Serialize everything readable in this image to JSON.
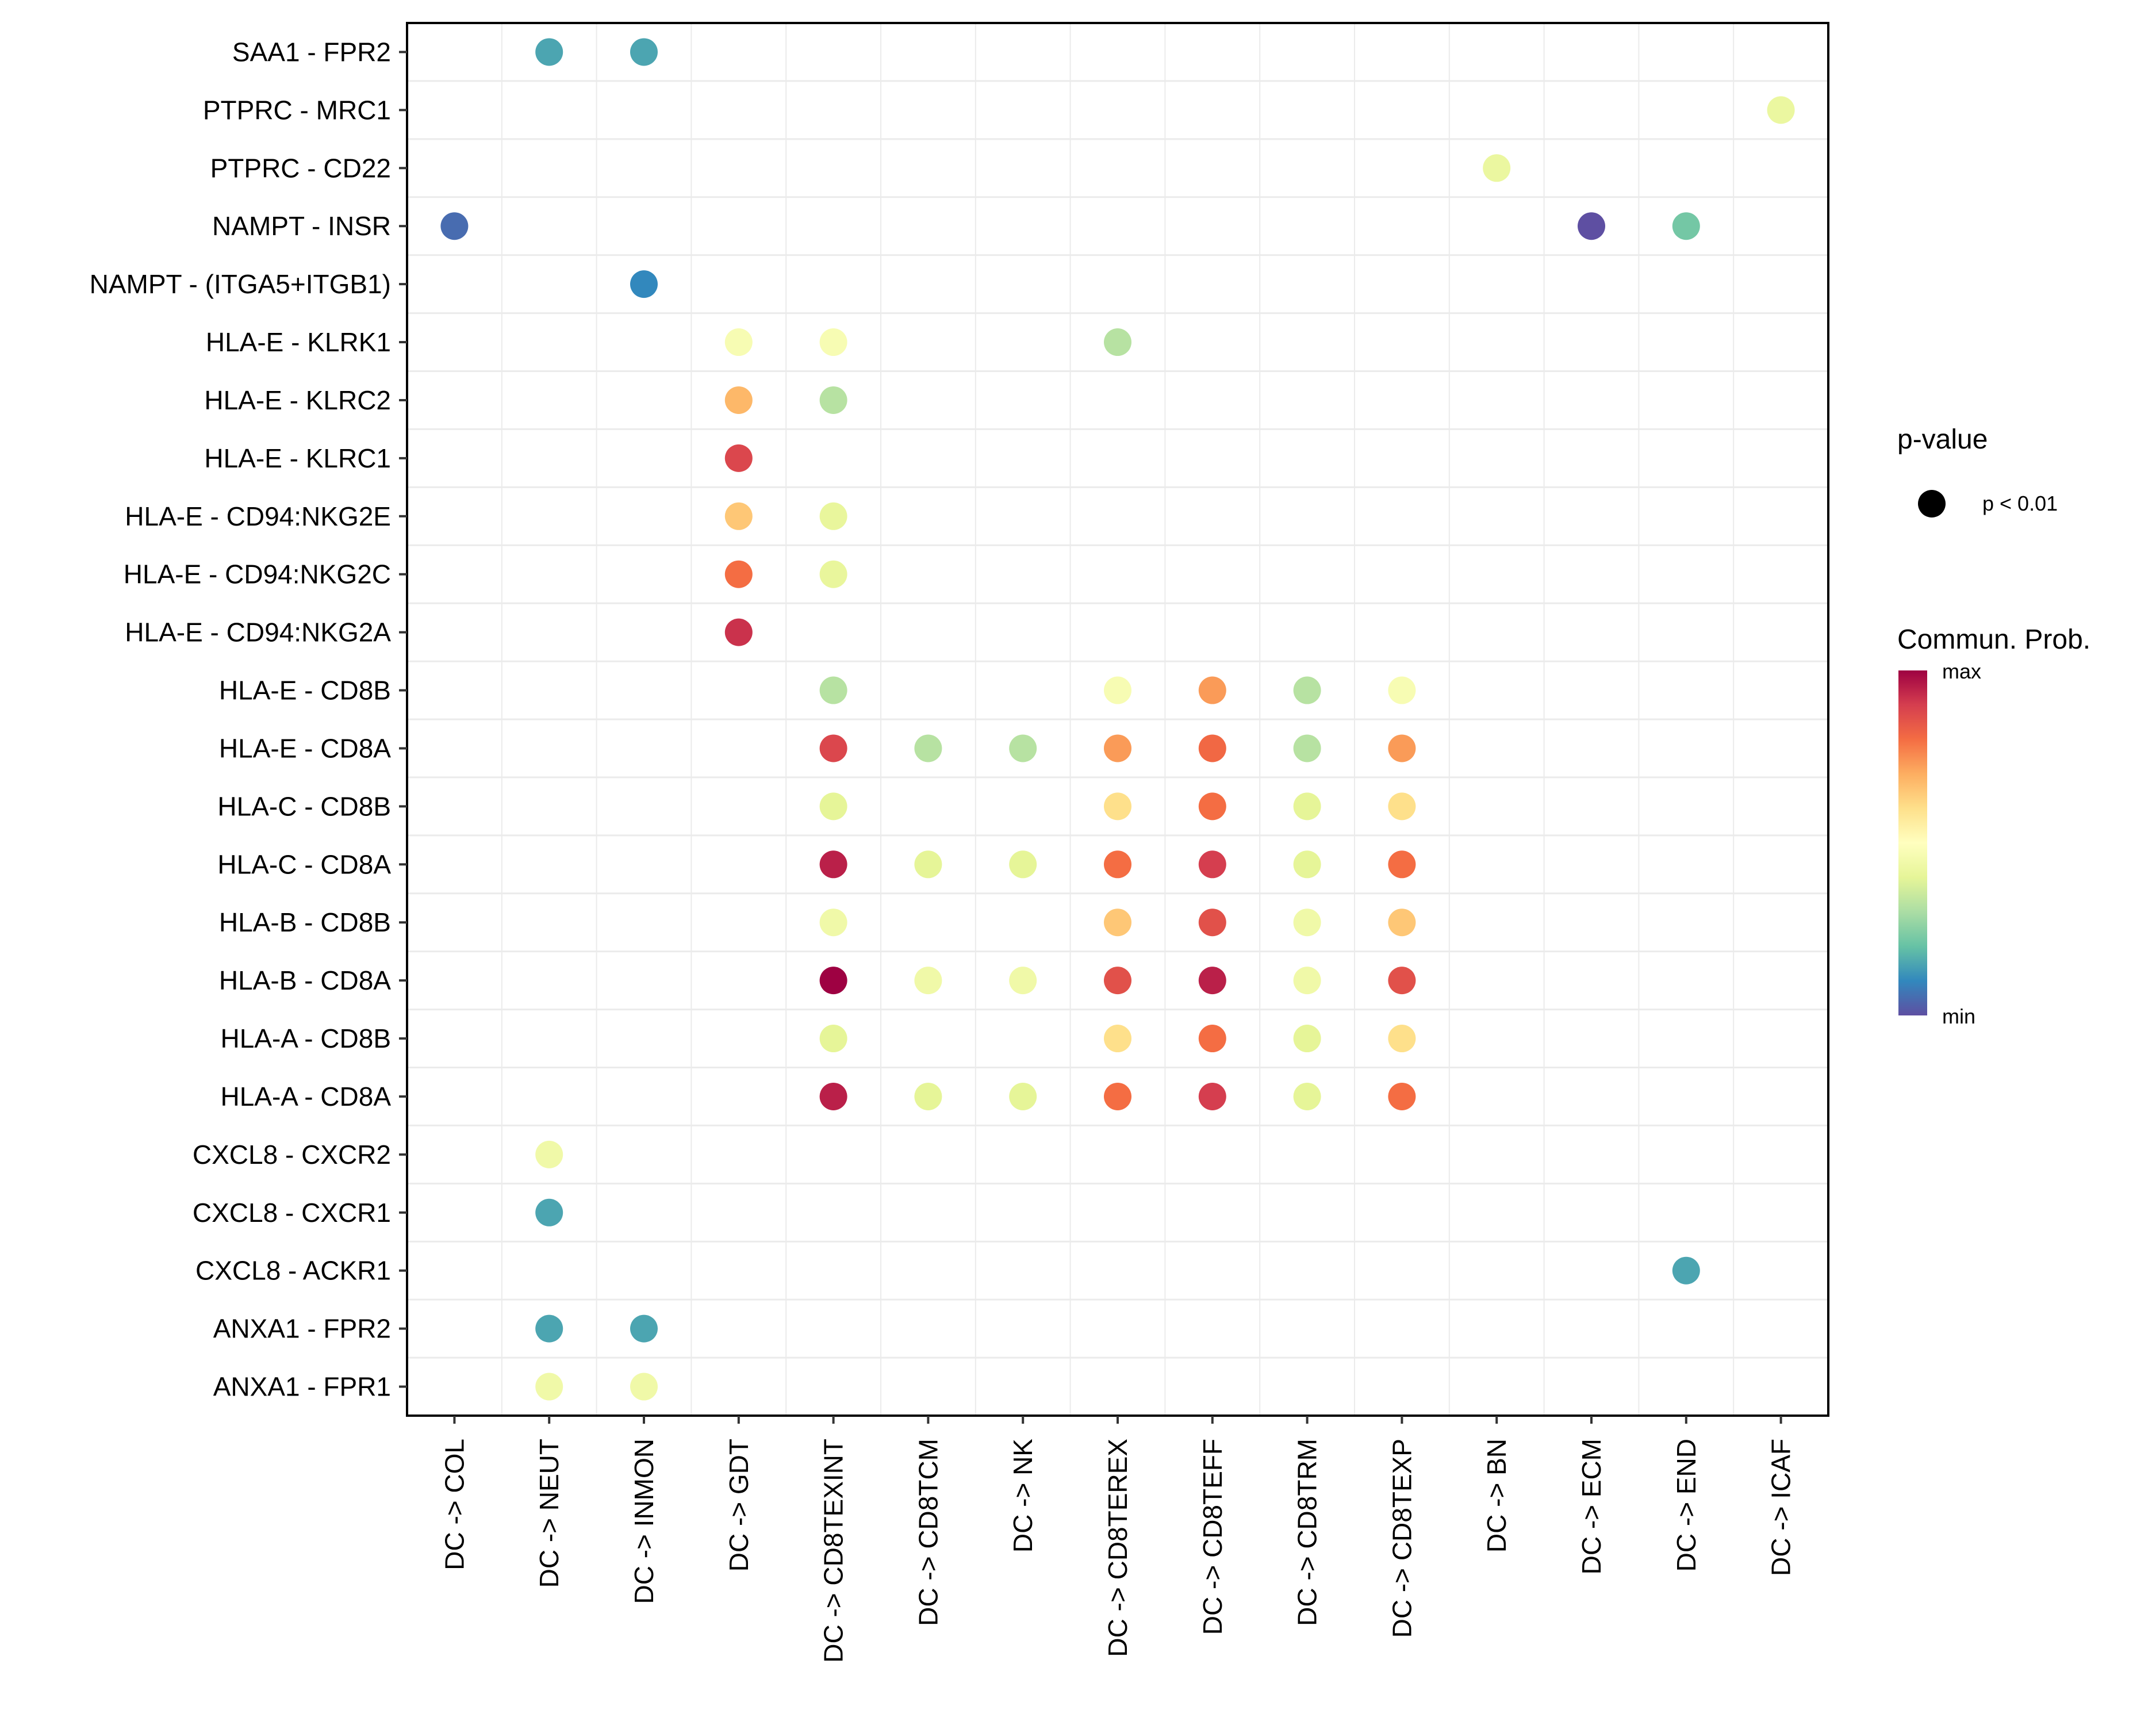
{
  "chart_data": {
    "type": "scatter",
    "subtype": "dot-plot",
    "title": "",
    "xlabel": "",
    "ylabel": "",
    "grid": true,
    "legend_placement": "right",
    "x_categories": [
      "DC -> COL",
      "DC -> NEUT",
      "DC -> INMON",
      "DC -> GDT",
      "DC -> CD8TEXINT",
      "DC -> CD8TCM",
      "DC -> NK",
      "DC -> CD8TEREX",
      "DC -> CD8TEFF",
      "DC -> CD8TRM",
      "DC -> CD8TEXP",
      "DC -> BN",
      "DC -> ECM",
      "DC -> END",
      "DC -> ICAF"
    ],
    "y_categories_top_to_bottom": [
      "SAA1 - FPR2",
      "PTPRC - MRC1",
      "PTPRC - CD22",
      "NAMPT - INSR",
      "NAMPT - (ITGA5+ITGB1)",
      "HLA-E - KLRK1",
      "HLA-E - KLRC2",
      "HLA-E - KLRC1",
      "HLA-E - CD94:NKG2E",
      "HLA-E - CD94:NKG2C",
      "HLA-E - CD94:NKG2A",
      "HLA-E - CD8B",
      "HLA-E - CD8A",
      "HLA-C - CD8B",
      "HLA-C - CD8A",
      "HLA-B - CD8B",
      "HLA-B - CD8A",
      "HLA-A - CD8B",
      "HLA-A - CD8A",
      "CXCL8 - CXCR2",
      "CXCL8 - CXCR1",
      "CXCL8 - ACKR1",
      "ANXA1 - FPR2",
      "ANXA1 - FPR1"
    ],
    "value_note": "commun_prob is relative position on the color scale (0 = min, 1 = max), estimated from dot color",
    "points": [
      {
        "y": "SAA1 - FPR2",
        "x": "DC -> NEUT",
        "commun_prob": 0.15
      },
      {
        "y": "SAA1 - FPR2",
        "x": "DC -> INMON",
        "commun_prob": 0.15
      },
      {
        "y": "PTPRC - MRC1",
        "x": "DC -> ICAF",
        "commun_prob": 0.42
      },
      {
        "y": "PTPRC - CD22",
        "x": "DC -> BN",
        "commun_prob": 0.42
      },
      {
        "y": "NAMPT - INSR",
        "x": "DC -> COL",
        "commun_prob": 0.05
      },
      {
        "y": "NAMPT - INSR",
        "x": "DC -> ECM",
        "commun_prob": 0.0
      },
      {
        "y": "NAMPT - INSR",
        "x": "DC -> END",
        "commun_prob": 0.22
      },
      {
        "y": "NAMPT - (ITGA5+ITGB1)",
        "x": "DC -> INMON",
        "commun_prob": 0.1
      },
      {
        "y": "HLA-E - KLRK1",
        "x": "DC -> GDT",
        "commun_prob": 0.47
      },
      {
        "y": "HLA-E - KLRK1",
        "x": "DC -> CD8TEXINT",
        "commun_prob": 0.47
      },
      {
        "y": "HLA-E - KLRK1",
        "x": "DC -> CD8TEREX",
        "commun_prob": 0.32
      },
      {
        "y": "HLA-E - KLRC2",
        "x": "DC -> GDT",
        "commun_prob": 0.68
      },
      {
        "y": "HLA-E - KLRC2",
        "x": "DC -> CD8TEXINT",
        "commun_prob": 0.32
      },
      {
        "y": "HLA-E - KLRC1",
        "x": "DC -> GDT",
        "commun_prob": 0.88
      },
      {
        "y": "HLA-E - CD94:NKG2E",
        "x": "DC -> GDT",
        "commun_prob": 0.65
      },
      {
        "y": "HLA-E - CD94:NKG2E",
        "x": "DC -> CD8TEXINT",
        "commun_prob": 0.41
      },
      {
        "y": "HLA-E - CD94:NKG2C",
        "x": "DC -> GDT",
        "commun_prob": 0.8
      },
      {
        "y": "HLA-E - CD94:NKG2C",
        "x": "DC -> CD8TEXINT",
        "commun_prob": 0.41
      },
      {
        "y": "HLA-E - CD94:NKG2A",
        "x": "DC -> GDT",
        "commun_prob": 0.92
      },
      {
        "y": "HLA-E - CD8B",
        "x": "DC -> CD8TEXINT",
        "commun_prob": 0.32
      },
      {
        "y": "HLA-E - CD8B",
        "x": "DC -> CD8TEREX",
        "commun_prob": 0.47
      },
      {
        "y": "HLA-E - CD8B",
        "x": "DC -> CD8TEFF",
        "commun_prob": 0.73
      },
      {
        "y": "HLA-E - CD8B",
        "x": "DC -> CD8TRM",
        "commun_prob": 0.32
      },
      {
        "y": "HLA-E - CD8B",
        "x": "DC -> CD8TEXP",
        "commun_prob": 0.47
      },
      {
        "y": "HLA-E - CD8A",
        "x": "DC -> CD8TEXINT",
        "commun_prob": 0.88
      },
      {
        "y": "HLA-E - CD8A",
        "x": "DC -> CD8TCM",
        "commun_prob": 0.32
      },
      {
        "y": "HLA-E - CD8A",
        "x": "DC -> NK",
        "commun_prob": 0.32
      },
      {
        "y": "HLA-E - CD8A",
        "x": "DC -> CD8TEREX",
        "commun_prob": 0.73
      },
      {
        "y": "HLA-E - CD8A",
        "x": "DC -> CD8TEFF",
        "commun_prob": 0.81
      },
      {
        "y": "HLA-E - CD8A",
        "x": "DC -> CD8TRM",
        "commun_prob": 0.32
      },
      {
        "y": "HLA-E - CD8A",
        "x": "DC -> CD8TEXP",
        "commun_prob": 0.73
      },
      {
        "y": "HLA-C - CD8B",
        "x": "DC -> CD8TEXINT",
        "commun_prob": 0.4
      },
      {
        "y": "HLA-C - CD8B",
        "x": "DC -> CD8TEREX",
        "commun_prob": 0.6
      },
      {
        "y": "HLA-C - CD8B",
        "x": "DC -> CD8TEFF",
        "commun_prob": 0.8
      },
      {
        "y": "HLA-C - CD8B",
        "x": "DC -> CD8TRM",
        "commun_prob": 0.4
      },
      {
        "y": "HLA-C - CD8B",
        "x": "DC -> CD8TEXP",
        "commun_prob": 0.6
      },
      {
        "y": "HLA-C - CD8A",
        "x": "DC -> CD8TEXINT",
        "commun_prob": 0.95
      },
      {
        "y": "HLA-C - CD8A",
        "x": "DC -> CD8TCM",
        "commun_prob": 0.4
      },
      {
        "y": "HLA-C - CD8A",
        "x": "DC -> NK",
        "commun_prob": 0.4
      },
      {
        "y": "HLA-C - CD8A",
        "x": "DC -> CD8TEREX",
        "commun_prob": 0.8
      },
      {
        "y": "HLA-C - CD8A",
        "x": "DC -> CD8TEFF",
        "commun_prob": 0.9
      },
      {
        "y": "HLA-C - CD8A",
        "x": "DC -> CD8TRM",
        "commun_prob": 0.4
      },
      {
        "y": "HLA-C - CD8A",
        "x": "DC -> CD8TEXP",
        "commun_prob": 0.8
      },
      {
        "y": "HLA-B - CD8B",
        "x": "DC -> CD8TEXINT",
        "commun_prob": 0.44
      },
      {
        "y": "HLA-B - CD8B",
        "x": "DC -> CD8TEREX",
        "commun_prob": 0.65
      },
      {
        "y": "HLA-B - CD8B",
        "x": "DC -> CD8TEFF",
        "commun_prob": 0.86
      },
      {
        "y": "HLA-B - CD8B",
        "x": "DC -> CD8TRM",
        "commun_prob": 0.44
      },
      {
        "y": "HLA-B - CD8B",
        "x": "DC -> CD8TEXP",
        "commun_prob": 0.65
      },
      {
        "y": "HLA-B - CD8A",
        "x": "DC -> CD8TEXINT",
        "commun_prob": 1.0
      },
      {
        "y": "HLA-B - CD8A",
        "x": "DC -> CD8TCM",
        "commun_prob": 0.44
      },
      {
        "y": "HLA-B - CD8A",
        "x": "DC -> NK",
        "commun_prob": 0.44
      },
      {
        "y": "HLA-B - CD8A",
        "x": "DC -> CD8TEREX",
        "commun_prob": 0.86
      },
      {
        "y": "HLA-B - CD8A",
        "x": "DC -> CD8TEFF",
        "commun_prob": 0.95
      },
      {
        "y": "HLA-B - CD8A",
        "x": "DC -> CD8TRM",
        "commun_prob": 0.44
      },
      {
        "y": "HLA-B - CD8A",
        "x": "DC -> CD8TEXP",
        "commun_prob": 0.86
      },
      {
        "y": "HLA-A - CD8B",
        "x": "DC -> CD8TEXINT",
        "commun_prob": 0.4
      },
      {
        "y": "HLA-A - CD8B",
        "x": "DC -> CD8TEREX",
        "commun_prob": 0.6
      },
      {
        "y": "HLA-A - CD8B",
        "x": "DC -> CD8TEFF",
        "commun_prob": 0.8
      },
      {
        "y": "HLA-A - CD8B",
        "x": "DC -> CD8TRM",
        "commun_prob": 0.4
      },
      {
        "y": "HLA-A - CD8B",
        "x": "DC -> CD8TEXP",
        "commun_prob": 0.6
      },
      {
        "y": "HLA-A - CD8A",
        "x": "DC -> CD8TEXINT",
        "commun_prob": 0.95
      },
      {
        "y": "HLA-A - CD8A",
        "x": "DC -> CD8TCM",
        "commun_prob": 0.4
      },
      {
        "y": "HLA-A - CD8A",
        "x": "DC -> NK",
        "commun_prob": 0.4
      },
      {
        "y": "HLA-A - CD8A",
        "x": "DC -> CD8TEREX",
        "commun_prob": 0.8
      },
      {
        "y": "HLA-A - CD8A",
        "x": "DC -> CD8TEFF",
        "commun_prob": 0.9
      },
      {
        "y": "HLA-A - CD8A",
        "x": "DC -> CD8TRM",
        "commun_prob": 0.4
      },
      {
        "y": "HLA-A - CD8A",
        "x": "DC -> CD8TEXP",
        "commun_prob": 0.8
      },
      {
        "y": "CXCL8 - CXCR2",
        "x": "DC -> NEUT",
        "commun_prob": 0.44
      },
      {
        "y": "CXCL8 - CXCR1",
        "x": "DC -> NEUT",
        "commun_prob": 0.15
      },
      {
        "y": "CXCL8 - ACKR1",
        "x": "DC -> END",
        "commun_prob": 0.15
      },
      {
        "y": "ANXA1 - FPR2",
        "x": "DC -> NEUT",
        "commun_prob": 0.15
      },
      {
        "y": "ANXA1 - FPR2",
        "x": "DC -> INMON",
        "commun_prob": 0.15
      },
      {
        "y": "ANXA1 - FPR1",
        "x": "DC -> NEUT",
        "commun_prob": 0.44
      },
      {
        "y": "ANXA1 - FPR1",
        "x": "DC -> INMON",
        "commun_prob": 0.44
      }
    ],
    "legend": {
      "pvalue": {
        "title": "p-value",
        "entries": [
          {
            "label": "p < 0.01"
          }
        ]
      },
      "color": {
        "title": "Commun. Prob.",
        "max_label": "max",
        "min_label": "min",
        "palette_min_to_max": [
          "#5E4FA2",
          "#3288BD",
          "#66C2A5",
          "#ABDDA4",
          "#E6F598",
          "#FFFFBF",
          "#FEE08B",
          "#FDAE61",
          "#F46D43",
          "#D53E4F",
          "#9E0142"
        ]
      }
    }
  }
}
